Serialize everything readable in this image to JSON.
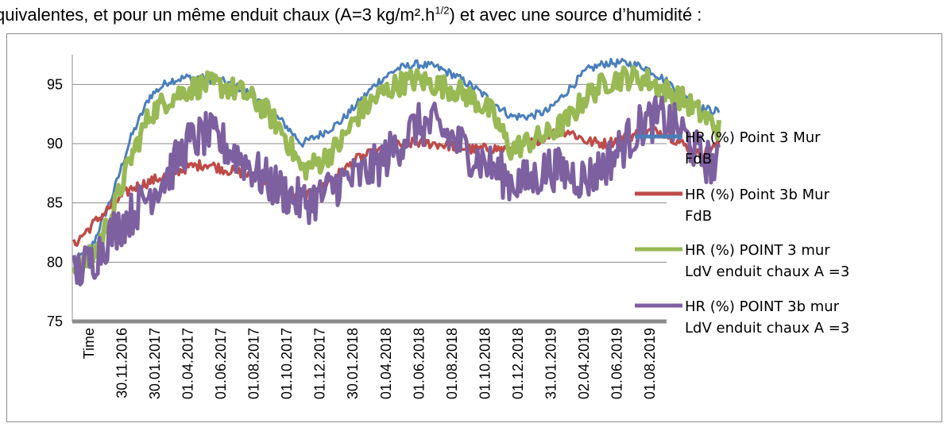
{
  "caption": {
    "pre": "quivalentes, et pour un même enduit chaux (A=3 kg/m².h",
    "sup": "1/2",
    "post": ") et avec une source d’humidité :"
  },
  "chart_data": {
    "type": "line",
    "title": "",
    "xlabel": "",
    "ylabel": "",
    "ylim": [
      75,
      97.5
    ],
    "yticks": [
      75,
      80,
      85,
      90,
      95
    ],
    "grid": "horizontal",
    "legend_position": "right",
    "x_tick_labels": [
      "Time",
      "30.11.2016",
      "30.01.2017",
      "01.04.2017",
      "01.06.2017",
      "01.08.2017",
      "01.10.2017",
      "01.12.2017",
      "30.01.2018",
      "01.04.2018",
      "01.06.2018",
      "01.08.2018",
      "01.10.2018",
      "01.12.2018",
      "31.01.2019",
      "02.04.2019",
      "01.06.2019",
      "01.08.2019"
    ],
    "series": [
      {
        "name": "HR (%) Point 3 Mur FdB",
        "color": "#4a7ebb",
        "values": [
          80.0,
          81.5,
          85.5,
          90.5,
          94.0,
          95.3,
          95.6,
          95.5,
          95.2,
          94.5,
          93.2,
          91.8,
          90.0,
          90.8,
          91.8,
          93.5,
          95.2,
          96.3,
          96.7,
          96.5,
          95.8,
          94.8,
          93.6,
          92.3,
          92.3,
          92.8,
          94.5,
          96.2,
          96.8,
          96.8,
          96.5,
          95.5,
          94.3,
          93.0,
          92.7
        ]
      },
      {
        "name": "HR (%) Point 3b Mur FdB",
        "color": "#be4b48",
        "values": [
          81.5,
          83.2,
          84.8,
          86.2,
          86.8,
          87.4,
          88.0,
          88.3,
          87.8,
          87.5,
          86.8,
          86.0,
          85.3,
          86.3,
          87.5,
          88.8,
          89.3,
          89.8,
          90.1,
          90.0,
          89.8,
          89.5,
          89.6,
          89.5,
          90.0,
          90.8,
          91.1,
          90.2,
          90.0,
          90.5,
          91.0,
          91.0,
          90.0,
          89.0,
          90.0
        ]
      },
      {
        "name": "HR (%) POINT 3 mur LdV enduit chaux A =3",
        "color": "#98b954",
        "values": [
          79.5,
          80.5,
          84.0,
          88.8,
          92.5,
          93.8,
          94.6,
          95.0,
          94.8,
          94.2,
          93.0,
          91.0,
          87.8,
          88.5,
          90.0,
          92.5,
          94.0,
          95.0,
          95.4,
          95.0,
          94.6,
          93.8,
          92.6,
          89.5,
          90.2,
          90.8,
          92.0,
          94.0,
          95.2,
          95.6,
          95.5,
          94.6,
          93.8,
          92.5,
          91.2
        ]
      },
      {
        "name": "HR (%) POINT 3b mur LdV enduit chaux A =3",
        "color": "#7d60a0",
        "values": [
          79.0,
          80.2,
          82.5,
          84.0,
          85.8,
          87.5,
          90.0,
          90.8,
          89.8,
          88.5,
          87.0,
          86.0,
          85.0,
          85.5,
          86.8,
          87.2,
          88.2,
          89.8,
          91.5,
          91.5,
          90.3,
          89.0,
          88.0,
          86.8,
          86.8,
          88.0,
          87.5,
          87.0,
          88.3,
          90.0,
          91.8,
          92.2,
          91.0,
          88.8,
          88.0
        ]
      }
    ]
  }
}
